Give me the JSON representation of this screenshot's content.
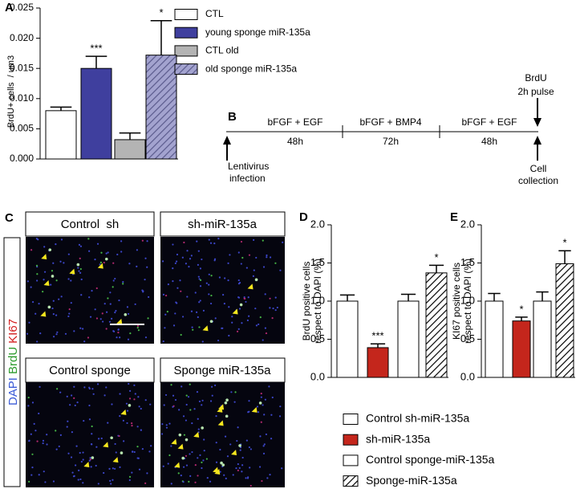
{
  "chart_data": [
    {
      "type": "bar",
      "panel": "A",
      "ylabel": "BrdU+ cells  / um3",
      "categories": [
        null
      ],
      "ylim": [
        0,
        0.025
      ],
      "yticks": [
        {
          "value": 0,
          "label": "0.000"
        },
        0.005,
        {
          "value": 0.01,
          "label": "0.010"
        },
        0.015,
        {
          "value": 0.02,
          "label": "0.020"
        },
        0.025
      ],
      "series": [
        {
          "name": "CTL",
          "color": "#ffffff",
          "values": [
            0.008
          ],
          "errors": [
            0.0006
          ]
        },
        {
          "name": "young sponge miR-135a",
          "color": "#3f3f9e",
          "values": [
            0.015
          ],
          "errors": [
            0.002
          ],
          "significance": "***"
        },
        {
          "name": "CTL old",
          "color": "#b4b4b4",
          "values": [
            0.0032
          ],
          "errors": [
            0.0011
          ]
        },
        {
          "name": "old sponge miR-135a",
          "color": "#a3a3cf",
          "hatch": true,
          "hatch_color": "#5a5a8c",
          "values": [
            0.0172
          ],
          "errors": [
            0.0057
          ],
          "significance": "*"
        }
      ]
    },
    {
      "type": "bar",
      "panel": "D",
      "ylabel": [
        "BrdU positive cells",
        "respect to DAPI (%)"
      ],
      "categories": [
        null
      ],
      "ylim": [
        0,
        2.0
      ],
      "yticks": [
        {
          "value": 0,
          "label": "0.0"
        },
        0.5,
        {
          "value": 1,
          "label": "1.0"
        },
        1.5,
        {
          "value": 2,
          "label": "2.0"
        }
      ],
      "series": [
        {
          "name": "Control sh-miR-135a",
          "color": "#ffffff",
          "values": [
            1.0
          ],
          "errors": [
            0.08
          ]
        },
        {
          "name": "sh-miR-135a",
          "color": "#c4261c",
          "values": [
            0.39
          ],
          "errors": [
            0.05
          ],
          "significance": "***"
        },
        {
          "name": "Control sponge-miR-135a",
          "color": "#ffffff",
          "values": [
            1.0
          ],
          "errors": [
            0.09
          ]
        },
        {
          "name": "Sponge-miR-135a",
          "color": "#ffffff",
          "hatch": true,
          "hatch_color": "#000000",
          "values": [
            1.37
          ],
          "errors": [
            0.1
          ],
          "significance": "*"
        }
      ]
    },
    {
      "type": "bar",
      "panel": "E",
      "ylabel": [
        "KI67 positive cells",
        "respect to DAPI (%)"
      ],
      "categories": [
        null
      ],
      "ylim": [
        0,
        2.0
      ],
      "yticks": [
        {
          "value": 0,
          "label": "0.0"
        },
        0.5,
        {
          "value": 1,
          "label": "1.0"
        },
        1.5,
        {
          "value": 2,
          "label": "2.0"
        }
      ],
      "series": [
        {
          "color": "#ffffff",
          "values": [
            1.0
          ],
          "errors": [
            0.1
          ]
        },
        {
          "color": "#c4261c",
          "values": [
            0.74
          ],
          "errors": [
            0.05
          ],
          "significance": "*"
        },
        {
          "color": "#ffffff",
          "values": [
            1.0
          ],
          "errors": [
            0.12
          ]
        },
        {
          "color": "#ffffff",
          "hatch": true,
          "hatch_color": "#000000",
          "values": [
            1.49
          ],
          "errors": [
            0.17
          ],
          "significance": "*"
        }
      ]
    }
  ],
  "timeline": {
    "panel": "B",
    "stages": [
      {
        "label": "bFGF + EGF",
        "duration": "48h"
      },
      {
        "label": "bFGF + BMP4",
        "duration": "72h"
      },
      {
        "label": "bFGF + EGF",
        "duration": "48h"
      }
    ],
    "start": [
      "Lentivirus",
      "infection"
    ],
    "end": [
      "Cell",
      "collection"
    ],
    "pulse": [
      "BrdU",
      "2h pulse"
    ]
  },
  "images": {
    "panel": "C",
    "stains": [
      "DAPI",
      "BrdU",
      "KI67"
    ],
    "titles": [
      "Control  sh",
      "sh-miR-135a",
      "Control sponge",
      "Sponge miR-135a"
    ]
  }
}
